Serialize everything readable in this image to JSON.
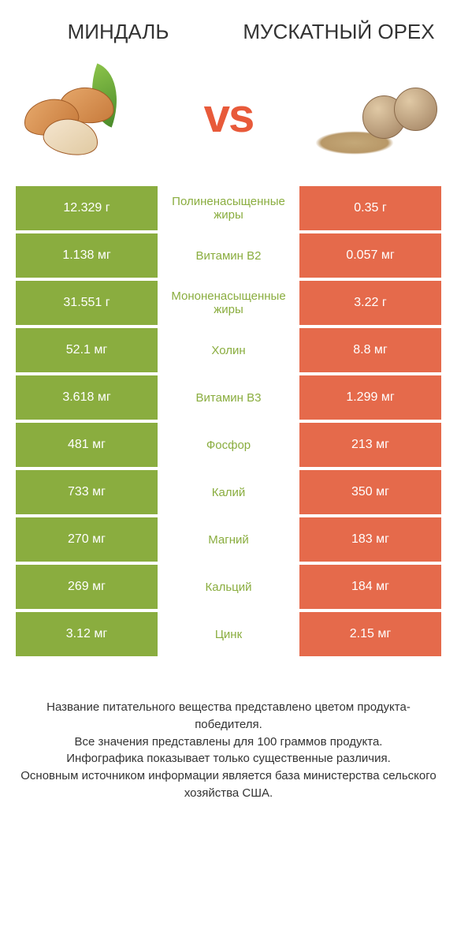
{
  "colors": {
    "left": "#8aad3f",
    "right": "#e56a4b",
    "mid_text": "#8aad3f",
    "title": "#333333",
    "vs": "#e85a3a",
    "footer_text": "#333333",
    "row_gap": "#ffffff"
  },
  "header": {
    "left_title": "Миндаль",
    "right_title": "Мускатный орех"
  },
  "vs_label": "vs",
  "rows": [
    {
      "left": "12.329 г",
      "mid": "Полиненасыщенные жиры",
      "right": "0.35 г"
    },
    {
      "left": "1.138 мг",
      "mid": "Витамин B2",
      "right": "0.057 мг"
    },
    {
      "left": "31.551 г",
      "mid": "Мононенасыщенные жиры",
      "right": "3.22 г"
    },
    {
      "left": "52.1 мг",
      "mid": "Холин",
      "right": "8.8 мг"
    },
    {
      "left": "3.618 мг",
      "mid": "Витамин B3",
      "right": "1.299 мг"
    },
    {
      "left": "481 мг",
      "mid": "Фосфор",
      "right": "213 мг"
    },
    {
      "left": "733 мг",
      "mid": "Калий",
      "right": "350 мг"
    },
    {
      "left": "270 мг",
      "mid": "Магний",
      "right": "183 мг"
    },
    {
      "left": "269 мг",
      "mid": "Кальций",
      "right": "184 мг"
    },
    {
      "left": "3.12 мг",
      "mid": "Цинк",
      "right": "2.15 мг"
    }
  ],
  "footer_lines": [
    "Название питательного вещества представлено цветом продукта-победителя.",
    "Все значения представлены для 100 граммов продукта.",
    "Инфографика показывает только существенные различия.",
    "Основным источником информации является база министерства сельского хозяйства США."
  ]
}
